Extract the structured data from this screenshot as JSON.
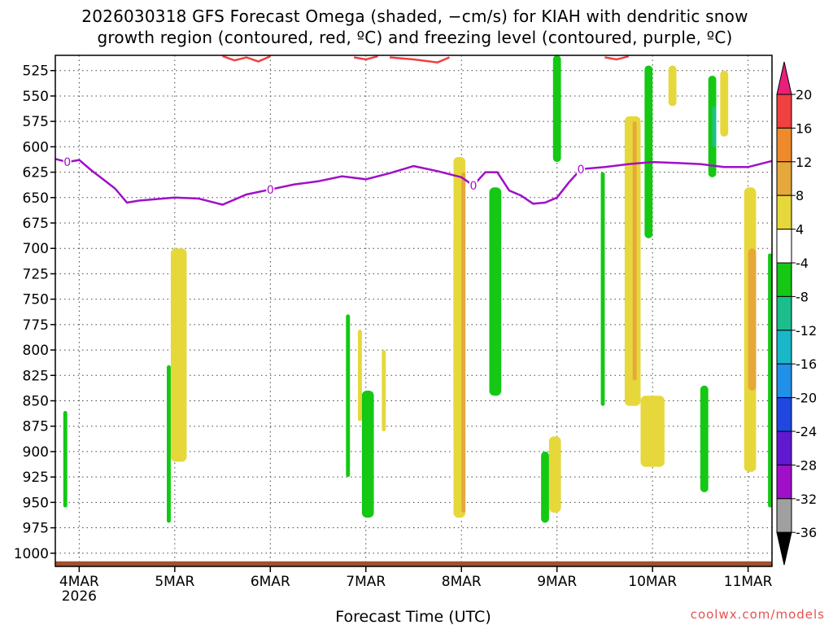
{
  "title": {
    "line1": "2026030318 GFS Forecast Omega (shaded, −cm/s) for KIAH with dendritic snow",
    "line2": "growth region (contoured, red, ºC) and freezing level (contoured, purple, ºC)"
  },
  "credit": "coolwx.com/models",
  "chart_data": {
    "type": "heatmap",
    "title": "2026030318 GFS Forecast Omega (shaded, −cm/s) for KIAH with dendritic snow growth region (contoured, red, ºC) and freezing level (contoured, purple, ºC)",
    "xlabel": "Forecast Time (UTC)",
    "ylabel": "",
    "x_range": [
      "2026-03-03 18Z",
      "2026-03-11 06Z"
    ],
    "y_range": [
      1013,
      510
    ],
    "x_ticks": [
      {
        "label": "4MAR",
        "sublabel": "2026",
        "day": 4
      },
      {
        "label": "5MAR",
        "sublabel": "",
        "day": 5
      },
      {
        "label": "6MAR",
        "sublabel": "",
        "day": 6
      },
      {
        "label": "7MAR",
        "sublabel": "",
        "day": 7
      },
      {
        "label": "8MAR",
        "sublabel": "",
        "day": 8
      },
      {
        "label": "9MAR",
        "sublabel": "",
        "day": 9
      },
      {
        "label": "10MAR",
        "sublabel": "",
        "day": 10
      },
      {
        "label": "11MAR",
        "sublabel": "",
        "day": 11
      }
    ],
    "y_ticks": [
      525,
      550,
      575,
      600,
      625,
      650,
      675,
      700,
      725,
      750,
      775,
      800,
      825,
      850,
      875,
      900,
      925,
      950,
      975,
      1000
    ],
    "grid": true,
    "colorbar": {
      "levels": [
        20,
        16,
        12,
        8,
        4,
        -4,
        -8,
        -12,
        -16,
        -20,
        -24,
        -28,
        -32,
        -36
      ],
      "bins": [
        {
          "from": 16,
          "to": 20,
          "color": "#f04040"
        },
        {
          "from": 12,
          "to": 16,
          "color": "#ee8a2c"
        },
        {
          "from": 8,
          "to": 12,
          "color": "#e6a83a"
        },
        {
          "from": 4,
          "to": 8,
          "color": "#e6d83a"
        },
        {
          "from": -4,
          "to": 4,
          "color": "#ffffff"
        },
        {
          "from": -8,
          "to": -4,
          "color": "#14c814"
        },
        {
          "from": -12,
          "to": -8,
          "color": "#1cbf8c"
        },
        {
          "from": -16,
          "to": -12,
          "color": "#18b8c8"
        },
        {
          "from": -20,
          "to": -16,
          "color": "#2090e8"
        },
        {
          "from": -24,
          "to": -20,
          "color": "#2048e0"
        },
        {
          "from": -28,
          "to": -24,
          "color": "#6018d0"
        },
        {
          "from": -32,
          "to": -28,
          "color": "#a010c8"
        },
        {
          "from": -36,
          "to": -32,
          "color": "#a0a0a0"
        }
      ],
      "over_color": "#e8207a",
      "under_color": "#000000"
    },
    "freezing_level": {
      "color": "#a010c8",
      "label": "0",
      "points": [
        {
          "t": "2026-03-03 18Z",
          "p": 612
        },
        {
          "t": "2026-03-03 21Z",
          "p": 615
        },
        {
          "t": "2026-03-04 00Z",
          "p": 613
        },
        {
          "t": "2026-03-04 03Z",
          "p": 623
        },
        {
          "t": "2026-03-04 06Z",
          "p": 632
        },
        {
          "t": "2026-03-04 09Z",
          "p": 641
        },
        {
          "t": "2026-03-04 12Z",
          "p": 655
        },
        {
          "t": "2026-03-04 15Z",
          "p": 653
        },
        {
          "t": "2026-03-04 18Z",
          "p": 652
        },
        {
          "t": "2026-03-05 00Z",
          "p": 650
        },
        {
          "t": "2026-03-05 06Z",
          "p": 651
        },
        {
          "t": "2026-03-05 12Z",
          "p": 657
        },
        {
          "t": "2026-03-05 18Z",
          "p": 647
        },
        {
          "t": "2026-03-06 00Z",
          "p": 642
        },
        {
          "t": "2026-03-06 06Z",
          "p": 637
        },
        {
          "t": "2026-03-06 12Z",
          "p": 634
        },
        {
          "t": "2026-03-06 18Z",
          "p": 629
        },
        {
          "t": "2026-03-07 00Z",
          "p": 632
        },
        {
          "t": "2026-03-07 06Z",
          "p": 626
        },
        {
          "t": "2026-03-07 12Z",
          "p": 619
        },
        {
          "t": "2026-03-07 18Z",
          "p": 624
        },
        {
          "t": "2026-03-08 00Z",
          "p": 630
        },
        {
          "t": "2026-03-08 03Z",
          "p": 638
        },
        {
          "t": "2026-03-08 06Z",
          "p": 625
        },
        {
          "t": "2026-03-08 09Z",
          "p": 625
        },
        {
          "t": "2026-03-08 12Z",
          "p": 643
        },
        {
          "t": "2026-03-08 15Z",
          "p": 648
        },
        {
          "t": "2026-03-08 18Z",
          "p": 656
        },
        {
          "t": "2026-03-08 21Z",
          "p": 655
        },
        {
          "t": "2026-03-09 00Z",
          "p": 650
        },
        {
          "t": "2026-03-09 03Z",
          "p": 635
        },
        {
          "t": "2026-03-09 06Z",
          "p": 622
        },
        {
          "t": "2026-03-09 12Z",
          "p": 620
        },
        {
          "t": "2026-03-09 18Z",
          "p": 617
        },
        {
          "t": "2026-03-10 00Z",
          "p": 615
        },
        {
          "t": "2026-03-10 06Z",
          "p": 616
        },
        {
          "t": "2026-03-10 12Z",
          "p": 617
        },
        {
          "t": "2026-03-10 18Z",
          "p": 620
        },
        {
          "t": "2026-03-11 00Z",
          "p": 620
        },
        {
          "t": "2026-03-11 06Z",
          "p": 614
        }
      ]
    },
    "dendritic_growth_region": {
      "color": "#f04040",
      "segments": [
        [
          {
            "t": "2026-03-05 12Z",
            "p": 510
          },
          {
            "t": "2026-03-05 15Z",
            "p": 515
          },
          {
            "t": "2026-03-05 18Z",
            "p": 512
          },
          {
            "t": "2026-03-05 21Z",
            "p": 516
          },
          {
            "t": "2026-03-06 00Z",
            "p": 511
          }
        ],
        [
          {
            "t": "2026-03-06 21Z",
            "p": 512
          },
          {
            "t": "2026-03-07 00Z",
            "p": 514
          },
          {
            "t": "2026-03-07 03Z",
            "p": 511
          }
        ],
        [
          {
            "t": "2026-03-07 06Z",
            "p": 512
          },
          {
            "t": "2026-03-07 12Z",
            "p": 514
          },
          {
            "t": "2026-03-07 18Z",
            "p": 517
          },
          {
            "t": "2026-03-07 21Z",
            "p": 512
          }
        ],
        [
          {
            "t": "2026-03-09 12Z",
            "p": 512
          },
          {
            "t": "2026-03-09 15Z",
            "p": 514
          },
          {
            "t": "2026-03-09 18Z",
            "p": 511
          }
        ]
      ]
    },
    "surface_pressure_hpa": 1008,
    "omega_regions": [
      {
        "t1": "2026-03-03 20Z",
        "t2": "2026-03-03 21Z",
        "p1": 860,
        "p2": 955,
        "value": -6
      },
      {
        "t1": "2026-03-04 22Z",
        "t2": "2026-03-04 23Z",
        "p1": 815,
        "p2": 970,
        "value": -6
      },
      {
        "t1": "2026-03-04 23Z",
        "t2": "2026-03-05 03Z",
        "p1": 700,
        "p2": 910,
        "value": 5
      },
      {
        "t1": "2026-03-06 19Z",
        "t2": "2026-03-06 20Z",
        "p1": 765,
        "p2": 925,
        "value": -6
      },
      {
        "t1": "2026-03-06 22Z",
        "t2": "2026-03-06 23Z",
        "p1": 780,
        "p2": 870,
        "value": 5
      },
      {
        "t1": "2026-03-06 23Z",
        "t2": "2026-03-07 02Z",
        "p1": 840,
        "p2": 965,
        "value": -6
      },
      {
        "t1": "2026-03-07 04Z",
        "t2": "2026-03-07 05Z",
        "p1": 800,
        "p2": 880,
        "value": 5
      },
      {
        "t1": "2026-03-07 22Z",
        "t2": "2026-03-07 23Z",
        "p1": 690,
        "p2": 880,
        "value": -6
      },
      {
        "t1": "2026-03-07 22Z",
        "t2": "2026-03-08 01Z",
        "p1": 610,
        "p2": 965,
        "value": 5
      },
      {
        "t1": "2026-03-08 00Z",
        "t2": "2026-03-08 01Z",
        "p1": 625,
        "p2": 960,
        "value": 9
      },
      {
        "t1": "2026-03-08 07Z",
        "t2": "2026-03-08 10Z",
        "p1": 640,
        "p2": 845,
        "value": -6
      },
      {
        "t1": "2026-03-08 20Z",
        "t2": "2026-03-08 22Z",
        "p1": 900,
        "p2": 970,
        "value": -6
      },
      {
        "t1": "2026-03-08 22Z",
        "t2": "2026-03-09 01Z",
        "p1": 885,
        "p2": 960,
        "value": 5
      },
      {
        "t1": "2026-03-08 23Z",
        "t2": "2026-03-09 01Z",
        "p1": 510,
        "p2": 615,
        "value": -6
      },
      {
        "t1": "2026-03-09 11Z",
        "t2": "2026-03-09 12Z",
        "p1": 625,
        "p2": 855,
        "value": -6
      },
      {
        "t1": "2026-03-09 17Z",
        "t2": "2026-03-09 21Z",
        "p1": 570,
        "p2": 855,
        "value": 5
      },
      {
        "t1": "2026-03-09 19Z",
        "t2": "2026-03-09 20Z",
        "p1": 575,
        "p2": 830,
        "value": 10
      },
      {
        "t1": "2026-03-09 22Z",
        "t2": "2026-03-10 00Z",
        "p1": 520,
        "p2": 690,
        "value": -6
      },
      {
        "t1": "2026-03-09 21Z",
        "t2": "2026-03-10 03Z",
        "p1": 845,
        "p2": 915,
        "value": 5
      },
      {
        "t1": "2026-03-10 04Z",
        "t2": "2026-03-10 06Z",
        "p1": 520,
        "p2": 560,
        "value": 5
      },
      {
        "t1": "2026-03-10 12Z",
        "t2": "2026-03-10 14Z",
        "p1": 835,
        "p2": 940,
        "value": -6
      },
      {
        "t1": "2026-03-10 14Z",
        "t2": "2026-03-10 16Z",
        "p1": 530,
        "p2": 630,
        "value": -6
      },
      {
        "t1": "2026-03-10 15Z",
        "t2": "2026-03-10 16Z",
        "p1": 560,
        "p2": 600,
        "value": -10
      },
      {
        "t1": "2026-03-10 17Z",
        "t2": "2026-03-10 19Z",
        "p1": 525,
        "p2": 590,
        "value": 5
      },
      {
        "t1": "2026-03-10 23Z",
        "t2": "2026-03-11 02Z",
        "p1": 640,
        "p2": 920,
        "value": 5
      },
      {
        "t1": "2026-03-11 00Z",
        "t2": "2026-03-11 02Z",
        "p1": 700,
        "p2": 840,
        "value": 10
      },
      {
        "t1": "2026-03-11 05Z",
        "t2": "2026-03-11 06Z",
        "p1": 705,
        "p2": 955,
        "value": -6
      }
    ]
  }
}
